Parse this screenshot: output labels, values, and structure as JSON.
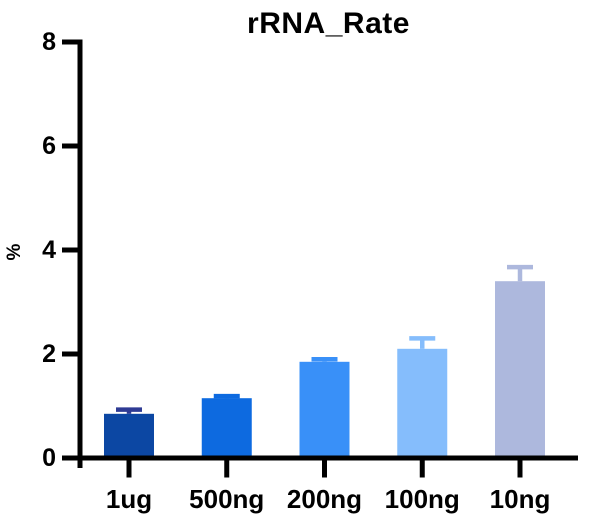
{
  "chart_data": {
    "type": "bar",
    "title": "rRNA_Rate",
    "ylabel": "%",
    "xlabel": "",
    "categories": [
      "1ug",
      "500ng",
      "200ng",
      "100ng",
      "10ng"
    ],
    "values": [
      0.85,
      1.15,
      1.85,
      2.1,
      3.4
    ],
    "errors": [
      0.08,
      0.04,
      0.05,
      0.2,
      0.27
    ],
    "error_direction": "up",
    "bar_colors": [
      "#0c47a3",
      "#0d6ae0",
      "#3990f8",
      "#85bdfc",
      "#adb8dd"
    ],
    "error_colors": [
      "#2e3b94",
      "#0d6ae0",
      "#3990f8",
      "#85bdfc",
      "#adb8dd"
    ],
    "axis_color": "#000000",
    "text_color": "#000000",
    "background": "#ffffff",
    "ylim": [
      0,
      8
    ],
    "yticks": [
      0,
      2,
      4,
      6,
      8
    ],
    "grid": false,
    "legend": false
  }
}
